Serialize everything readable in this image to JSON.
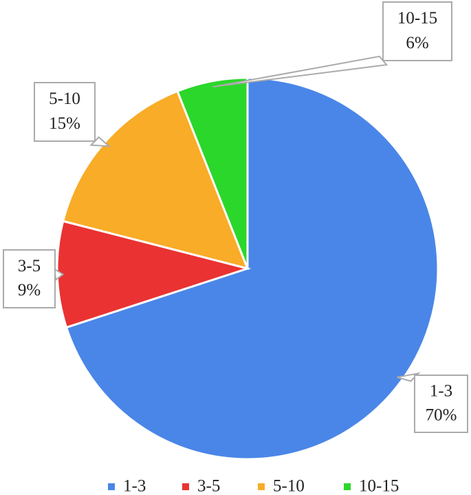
{
  "chart_data": {
    "type": "pie",
    "categories": [
      "1-3",
      "3-5",
      "5-10",
      "10-15"
    ],
    "values": [
      70,
      9,
      15,
      6
    ],
    "value_labels": [
      "70%",
      "9%",
      "15%",
      "6%"
    ],
    "colors": [
      "#4a86e8",
      "#ea3232",
      "#f8ac27",
      "#2bd72b"
    ],
    "legend": "bottom"
  }
}
